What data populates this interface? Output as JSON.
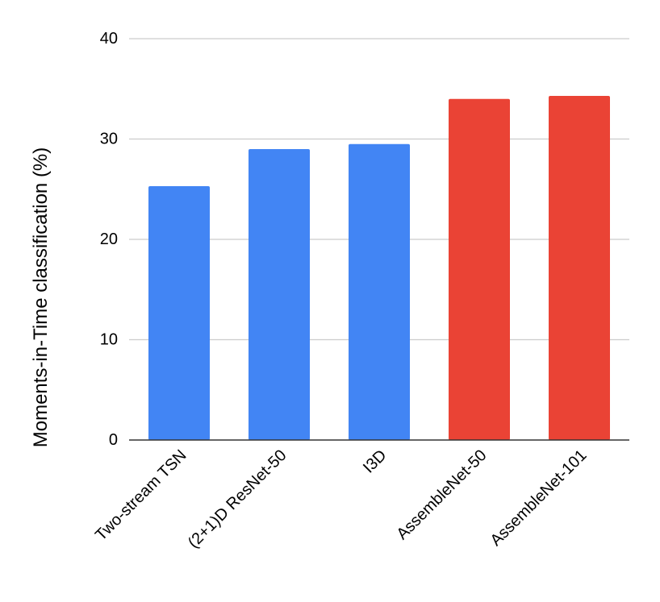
{
  "chart_data": {
    "type": "bar",
    "title": "",
    "xlabel": "",
    "ylabel": "Moments-in-Time classification (%)",
    "ylim": [
      0,
      40
    ],
    "yticks": [
      0,
      10,
      20,
      30,
      40
    ],
    "grid": true,
    "categories": [
      "Two-stream TSN",
      "(2+1)D ResNet-50",
      "I3D",
      "AssembleNet-50",
      "AssembleNet-101"
    ],
    "values": [
      25.3,
      29.0,
      29.5,
      34.0,
      34.3
    ],
    "bar_colors": [
      "#4285f4",
      "#4285f4",
      "#4285f4",
      "#ea4335",
      "#ea4335"
    ]
  },
  "colors": {
    "grid": "#cccccc",
    "axis": "#333333",
    "text": "#000000"
  }
}
